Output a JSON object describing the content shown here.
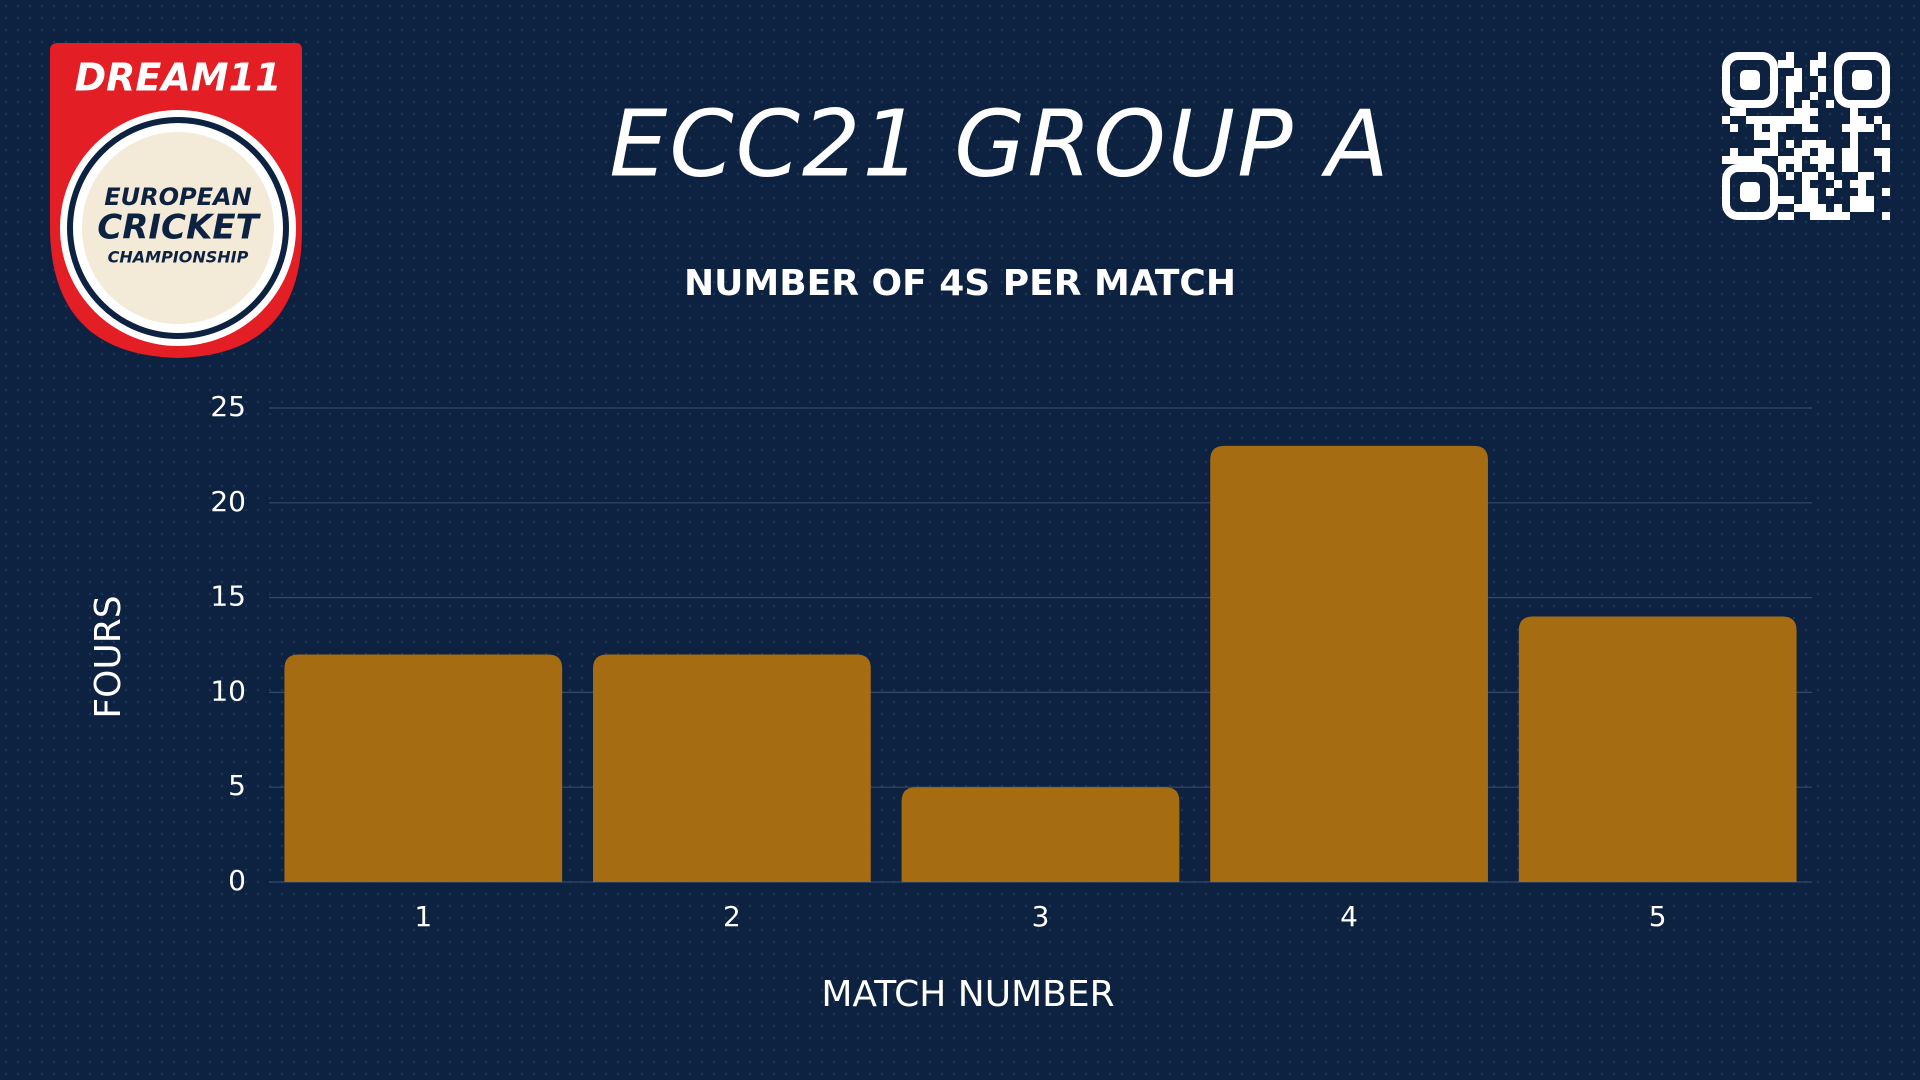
{
  "chart_data": {
    "type": "bar",
    "title": "ECC21 GROUP A",
    "subtitle": "NUMBER OF 4S PER MATCH",
    "x_label": "MATCH NUMBER",
    "y_label": "FOURS",
    "categories": [
      "1",
      "2",
      "3",
      "4",
      "5"
    ],
    "values": [
      12,
      12,
      5,
      23,
      14
    ],
    "color": "#a56c12",
    "ylim": [
      0,
      25
    ],
    "yticks": [
      0,
      5,
      10,
      15,
      20,
      25
    ],
    "grid": true
  },
  "logo": {
    "brand": "DREAM11",
    "lines": [
      "EUROPEAN",
      "CRICKET",
      "CHAMPIONSHIP"
    ]
  }
}
